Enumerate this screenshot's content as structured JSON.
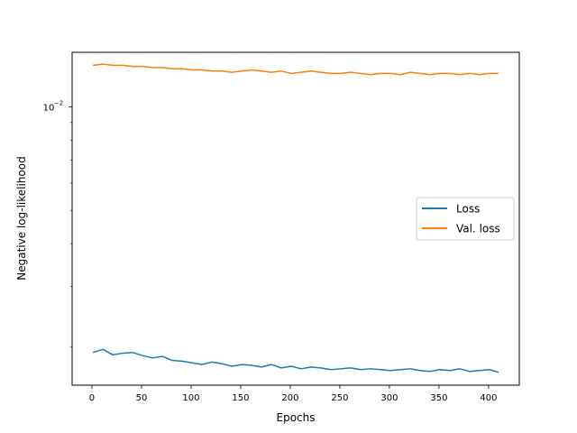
{
  "chart_data": {
    "type": "line",
    "title": "",
    "xlabel": "Epochs",
    "ylabel": "Negative log-likelihood",
    "x_ticks": [
      0,
      50,
      100,
      150,
      200,
      250,
      300,
      350,
      400
    ],
    "x_tick_labels": [
      "0",
      "50",
      "100",
      "150",
      "200",
      "250",
      "300",
      "350",
      "400"
    ],
    "y_tick_label": "10",
    "y_tick_exponent": "−2",
    "y_tick_value": 0.01,
    "y_scale": "log",
    "xlim": [
      -20,
      431
    ],
    "ylim": [
      0.00155,
      0.0144
    ],
    "grid": false,
    "legend_position": "center-right",
    "series": [
      {
        "name": "Loss",
        "color": "#1f77b4",
        "x": [
          1,
          11,
          21,
          31,
          41,
          51,
          61,
          71,
          81,
          91,
          101,
          111,
          121,
          131,
          141,
          151,
          161,
          171,
          181,
          191,
          201,
          211,
          221,
          231,
          241,
          251,
          261,
          271,
          281,
          291,
          301,
          311,
          321,
          331,
          341,
          351,
          361,
          371,
          381,
          391,
          401,
          410
        ],
        "y": [
          0.00193,
          0.00197,
          0.0019,
          0.00192,
          0.00193,
          0.00189,
          0.00186,
          0.00188,
          0.00183,
          0.00182,
          0.0018,
          0.00178,
          0.00181,
          0.00179,
          0.00176,
          0.00178,
          0.00177,
          0.00175,
          0.00178,
          0.00174,
          0.00176,
          0.00173,
          0.00175,
          0.00174,
          0.00172,
          0.00173,
          0.00174,
          0.00172,
          0.00173,
          0.00172,
          0.00171,
          0.00172,
          0.00173,
          0.00171,
          0.0017,
          0.00172,
          0.00171,
          0.00173,
          0.0017,
          0.00171,
          0.00172,
          0.00169
        ]
      },
      {
        "name": "Val. loss",
        "color": "#ff7f0e",
        "x": [
          1,
          11,
          21,
          31,
          41,
          51,
          61,
          71,
          81,
          91,
          101,
          111,
          121,
          131,
          141,
          151,
          161,
          171,
          181,
          191,
          201,
          211,
          221,
          231,
          241,
          251,
          261,
          271,
          281,
          291,
          301,
          311,
          321,
          331,
          341,
          351,
          361,
          371,
          381,
          391,
          401,
          410
        ],
        "y": [
          0.0132,
          0.0133,
          0.0132,
          0.0132,
          0.0131,
          0.0131,
          0.013,
          0.013,
          0.0129,
          0.0129,
          0.0128,
          0.0128,
          0.0127,
          0.0127,
          0.0126,
          0.0127,
          0.0128,
          0.0127,
          0.0126,
          0.0127,
          0.0125,
          0.0126,
          0.0127,
          0.0126,
          0.0125,
          0.0125,
          0.0126,
          0.0125,
          0.0124,
          0.0125,
          0.0125,
          0.0124,
          0.0126,
          0.0125,
          0.0124,
          0.0125,
          0.0125,
          0.0124,
          0.0125,
          0.0124,
          0.0125,
          0.0125
        ]
      }
    ]
  }
}
